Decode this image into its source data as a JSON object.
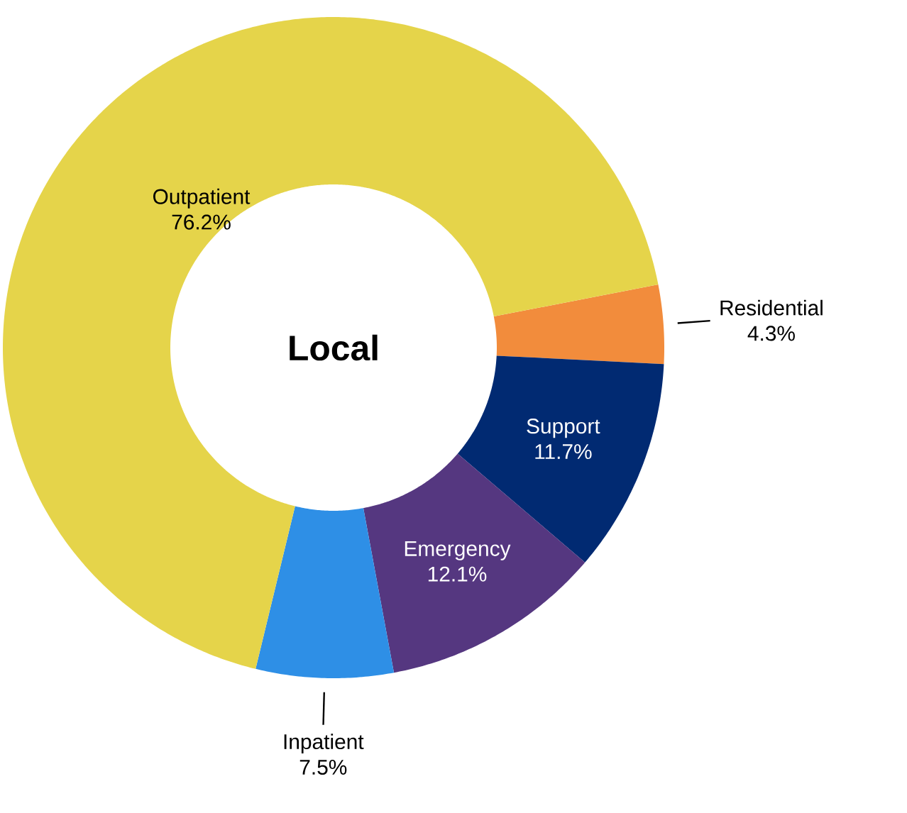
{
  "chart_data": {
    "type": "donut",
    "title": "Local",
    "categories": [
      "Residential",
      "Support",
      "Emergency",
      "Inpatient",
      "Outpatient"
    ],
    "values": [
      4.3,
      11.7,
      12.1,
      7.5,
      76.2
    ],
    "colors": [
      "#f28c3c",
      "#012a72",
      "#553780",
      "#2e8fe6",
      "#e5d44a"
    ],
    "value_labels": [
      "4.3%",
      "11.7%",
      "12.1%",
      "7.5%",
      "76.2%"
    ]
  }
}
